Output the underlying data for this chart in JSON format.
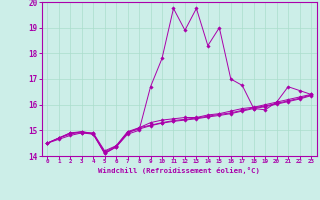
{
  "title": "",
  "xlabel": "Windchill (Refroidissement éolien,°C)",
  "ylabel": "",
  "xlim": [
    -0.5,
    23.5
  ],
  "ylim": [
    14,
    20
  ],
  "yticks": [
    14,
    15,
    16,
    17,
    18,
    19,
    20
  ],
  "xticks": [
    0,
    1,
    2,
    3,
    4,
    5,
    6,
    7,
    8,
    9,
    10,
    11,
    12,
    13,
    14,
    15,
    16,
    17,
    18,
    19,
    20,
    21,
    22,
    23
  ],
  "background_color": "#cceee8",
  "grid_color": "#aaddcc",
  "line_color": "#aa00aa",
  "lines": [
    [
      14.5,
      14.7,
      14.9,
      14.9,
      14.85,
      14.1,
      14.35,
      14.85,
      15.0,
      16.7,
      17.8,
      19.75,
      18.9,
      19.75,
      18.3,
      19.0,
      17.0,
      16.75,
      15.85,
      15.8,
      16.1,
      16.7,
      16.55,
      16.4
    ],
    [
      14.5,
      14.7,
      14.9,
      14.95,
      14.85,
      14.1,
      14.35,
      14.9,
      15.1,
      15.3,
      15.4,
      15.45,
      15.5,
      15.5,
      15.6,
      15.65,
      15.75,
      15.85,
      15.9,
      16.0,
      16.1,
      16.2,
      16.3,
      16.4
    ],
    [
      14.5,
      14.65,
      14.8,
      14.9,
      14.9,
      14.2,
      14.4,
      14.95,
      15.1,
      15.2,
      15.3,
      15.38,
      15.43,
      15.48,
      15.55,
      15.62,
      15.68,
      15.78,
      15.88,
      15.95,
      16.05,
      16.15,
      16.25,
      16.38
    ],
    [
      14.5,
      14.7,
      14.85,
      14.95,
      14.88,
      14.15,
      14.38,
      14.92,
      15.05,
      15.18,
      15.28,
      15.35,
      15.4,
      15.45,
      15.52,
      15.58,
      15.65,
      15.75,
      15.85,
      15.92,
      16.02,
      16.12,
      16.22,
      16.35
    ]
  ]
}
